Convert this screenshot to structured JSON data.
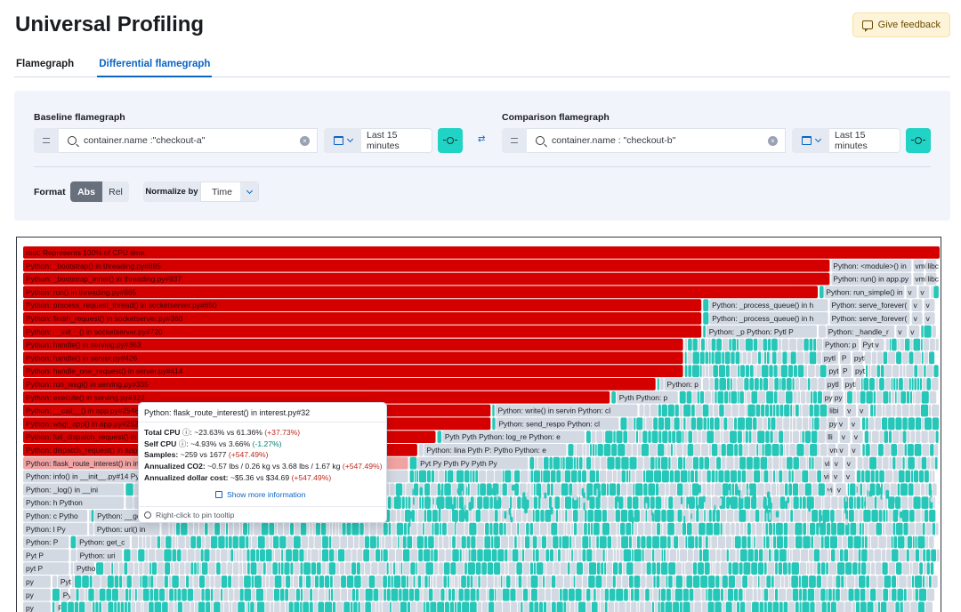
{
  "header": {
    "title": "Universal Profiling",
    "feedback_label": "Give feedback"
  },
  "tabs": [
    {
      "label": "Flamegraph",
      "active": false
    },
    {
      "label": "Differential flamegraph",
      "active": true
    }
  ],
  "baseline": {
    "label": "Baseline flamegraph",
    "query": "container.name :\"checkout-a\"",
    "time_range": "Last 15 minutes"
  },
  "comparison": {
    "label": "Comparison flamegraph",
    "query": "container.name : \"checkout-b\"",
    "time_range": "Last 15 minutes"
  },
  "controls": {
    "format_label": "Format",
    "format_options": [
      "Abs",
      "Rel"
    ],
    "format_selected": "Abs",
    "normalize_label": "Normalize by",
    "normalize_value": "Time"
  },
  "colors": {
    "red": "#d40000",
    "pink": "#f0a3a3",
    "teal": "#26c6b8",
    "gray": "#d3d9e3",
    "text_dark": "#1a1c21"
  },
  "flamegraph": {
    "rows": [
      {
        "label": "root: Represents 100% of CPU time.",
        "w": 1.0,
        "color": "red"
      },
      {
        "label": "Python: _bootstrap() in threading.py#885",
        "w": 0.88,
        "color": "red",
        "right": [
          "Python: <module>() in",
          "vml",
          "libc"
        ]
      },
      {
        "label": "Python: _bootstrap_inner() in threading.py#937",
        "w": 0.88,
        "color": "red",
        "right": [
          "Python: run() in app.py",
          "vml",
          "libc"
        ]
      },
      {
        "label": "Python: run() in threading.py#865",
        "w": 0.867,
        "color": "red",
        "right": [
          "Python: run_simple() in",
          "v",
          "v"
        ]
      },
      {
        "label": "Python: process_request_thread() in socketserver.py#650",
        "w": 0.74,
        "color": "red",
        "mid": "Python: _process_queue() in h",
        "right": [
          "Python: serve_forever(",
          "v",
          "v"
        ]
      },
      {
        "label": "Python: finish_request() in socketserver.py#360",
        "w": 0.74,
        "color": "red",
        "mid": "Python: _process_queue() in h",
        "right": [
          "Python: serve_forever(",
          "v",
          "v"
        ]
      },
      {
        "label": "Python: __init__() in socketserver.py#720",
        "w": 0.74,
        "color": "red",
        "mid": "Python: _p  Python: Pytl  P",
        "right": [
          "Python: _handle_r",
          "v",
          "v"
        ]
      },
      {
        "label": "Python: handle() in serving.py#363",
        "w": 0.72,
        "color": "red",
        "right": [
          "Python: p",
          "Pythor",
          "v"
        ]
      },
      {
        "label": "Python: handle() in server.py#426",
        "w": 0.72,
        "color": "red",
        "right": [
          "pytl",
          "P",
          "pytl"
        ]
      },
      {
        "label": "Python: handle_one_request() in server.py#414",
        "w": 0.72,
        "color": "red",
        "right": [
          "pyt",
          "P",
          "pyt"
        ]
      },
      {
        "label": "Python: run_wsgi() in serving.py#335",
        "w": 0.69,
        "color": "red",
        "mid": "Python: p",
        "right": [
          "pytl",
          "pytl"
        ]
      },
      {
        "label": "Python: execute() in serving.py#322",
        "w": 0.64,
        "color": "red",
        "mid": "Pyth  Python: p",
        "right": [
          "py",
          "py"
        ]
      },
      {
        "label": "Python: __call__() in app.py#2548",
        "w": 0.51,
        "color": "red",
        "mid": "Python: write() in servin  Python: cl",
        "right": [
          "libi",
          "v",
          "v"
        ]
      },
      {
        "label": "Python: wsgi_app() in app.py#2528",
        "w": 0.51,
        "color": "red",
        "mid": "Python: send_respo  Python: cl",
        "right": [
          "py",
          "v",
          "v"
        ]
      },
      {
        "label": "Python: full_dispatch_request() in app.py#1822",
        "w": 0.45,
        "color": "red",
        "mid": "Pyth  Pyth  Python: log_re  Python: e",
        "right": [
          "lli",
          "v",
          "v"
        ]
      },
      {
        "label": "Python: dispatch_request() in app.py#1796",
        "w": 0.43,
        "color": "red",
        "mid": "Python: lina  Pyth  P:  Pytho  Python: e",
        "right": [
          "vn",
          "v",
          "v"
        ]
      },
      {
        "label": "Python: flask_route_interest() in interest.py#32",
        "w": 0.42,
        "color": "pink",
        "mid": "Pyt  Py  Pyth  Py  Pyth  Py",
        "right": [
          "vi",
          "v",
          "v"
        ]
      },
      {
        "label": "Python: info() in __init__.py#14  Python: pyth",
        "w": 0.42,
        "color": "gray",
        "right": [
          "vi",
          "v",
          "v"
        ]
      },
      {
        "label": "Python: _log() in __ini",
        "w": 0.11,
        "color": "gray",
        "right": [
          "vi",
          "v"
        ]
      },
      {
        "label": "Python: h  Python",
        "w": 0.11,
        "color": "gray"
      },
      {
        "label": "Python: c  Pytho",
        "w": 0.07,
        "color": "gray",
        "mid": "Python: __get__()"
      },
      {
        "label": "Python: l  Py",
        "w": 0.07,
        "color": "gray",
        "mid": "Python: url() in"
      },
      {
        "label": "Python:  P",
        "w": 0.05,
        "color": "gray",
        "mid": "Python: get_c"
      },
      {
        "label": "Pyt  P",
        "w": 0.05,
        "color": "gray",
        "mid": "Python: uri"
      },
      {
        "label": "pyt  P",
        "w": 0.05,
        "color": "gray",
        "mid": "Pytho"
      },
      {
        "label": "py",
        "w": 0.03,
        "color": "gray",
        "mid": "Pyt"
      },
      {
        "label": "py",
        "w": 0.03,
        "color": "gray",
        "mid": "Py"
      },
      {
        "label": "py",
        "w": 0.03,
        "color": "gray",
        "mid": "P"
      }
    ]
  },
  "tooltip": {
    "title": "Python: flask_route_interest() in interest.py#32",
    "total_cpu_label": "Total CPU",
    "total_cpu_value": ": ~23.63% vs 61.36%",
    "total_cpu_delta": "(+37.73%)",
    "self_cpu_label": "Self CPU",
    "self_cpu_value": ": ~4.93% vs 3.66%",
    "self_cpu_delta": "(-1.27%)",
    "samples_label": "Samples:",
    "samples_value": "~259 vs 1677",
    "samples_delta": "(+547.49%)",
    "co2_label": "Annualized CO2:",
    "co2_value": "~0.57 lbs / 0.26 kg vs 3.68 lbs / 1.67 kg",
    "co2_delta": "(+547.49%)",
    "cost_label": "Annualized dollar cost:",
    "cost_value": "~$5.36 vs $34.69",
    "cost_delta": "(+547.49%)",
    "show_more": "Show more information",
    "pin_hint": "Right-click to pin tooltip"
  }
}
